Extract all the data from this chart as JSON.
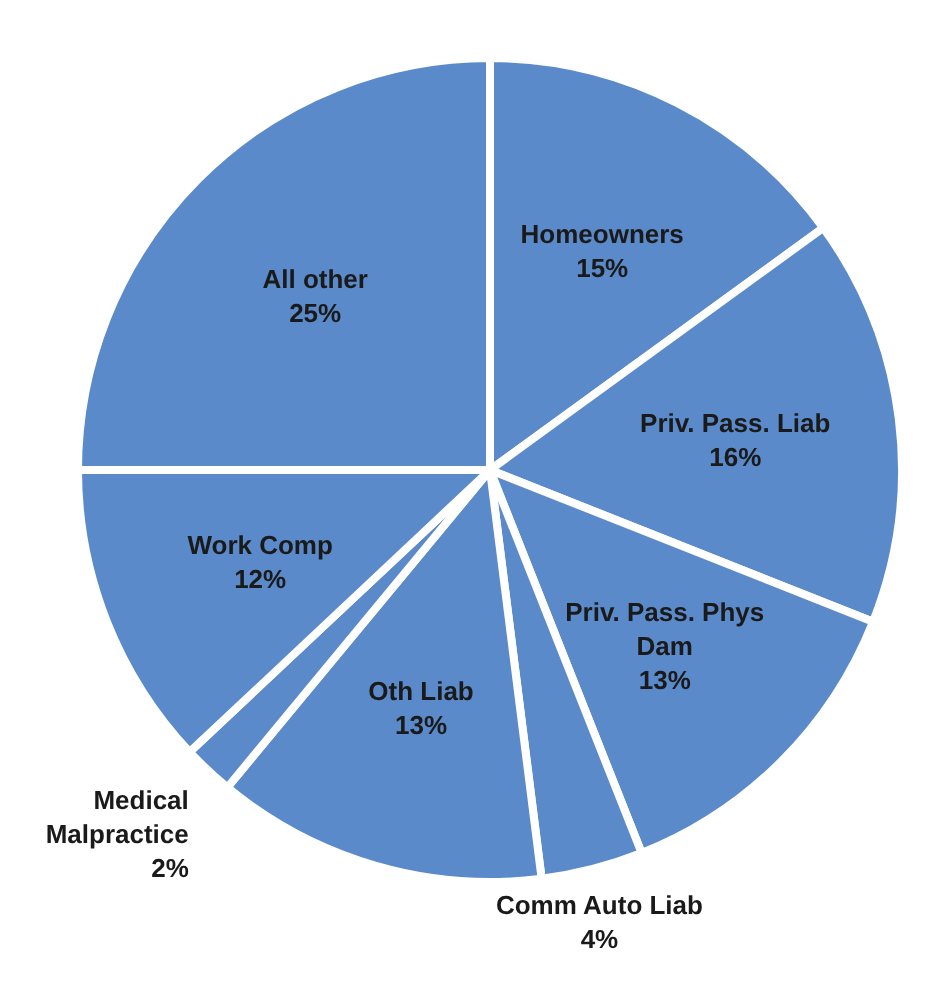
{
  "chart_data": {
    "type": "pie",
    "categories": [
      "Homeowners",
      "Priv. Pass. Liab",
      "Priv. Pass. Phys Dam",
      "Comm Auto Liab",
      "Oth Liab",
      "Medical Malpractice",
      "Work Comp",
      "All other"
    ],
    "values": [
      15,
      16,
      13,
      4,
      13,
      2,
      12,
      25
    ],
    "value_labels": [
      "15%",
      "16%",
      "13%",
      "4%",
      "13%",
      "2%",
      "12%",
      "25%"
    ],
    "colors": [
      "#5a8ac9",
      "#5a8ac9",
      "#5a8ac9",
      "#5a8ac9",
      "#5a8ac9",
      "#5a8ac9",
      "#5a8ac9",
      "#5a8ac9"
    ]
  }
}
